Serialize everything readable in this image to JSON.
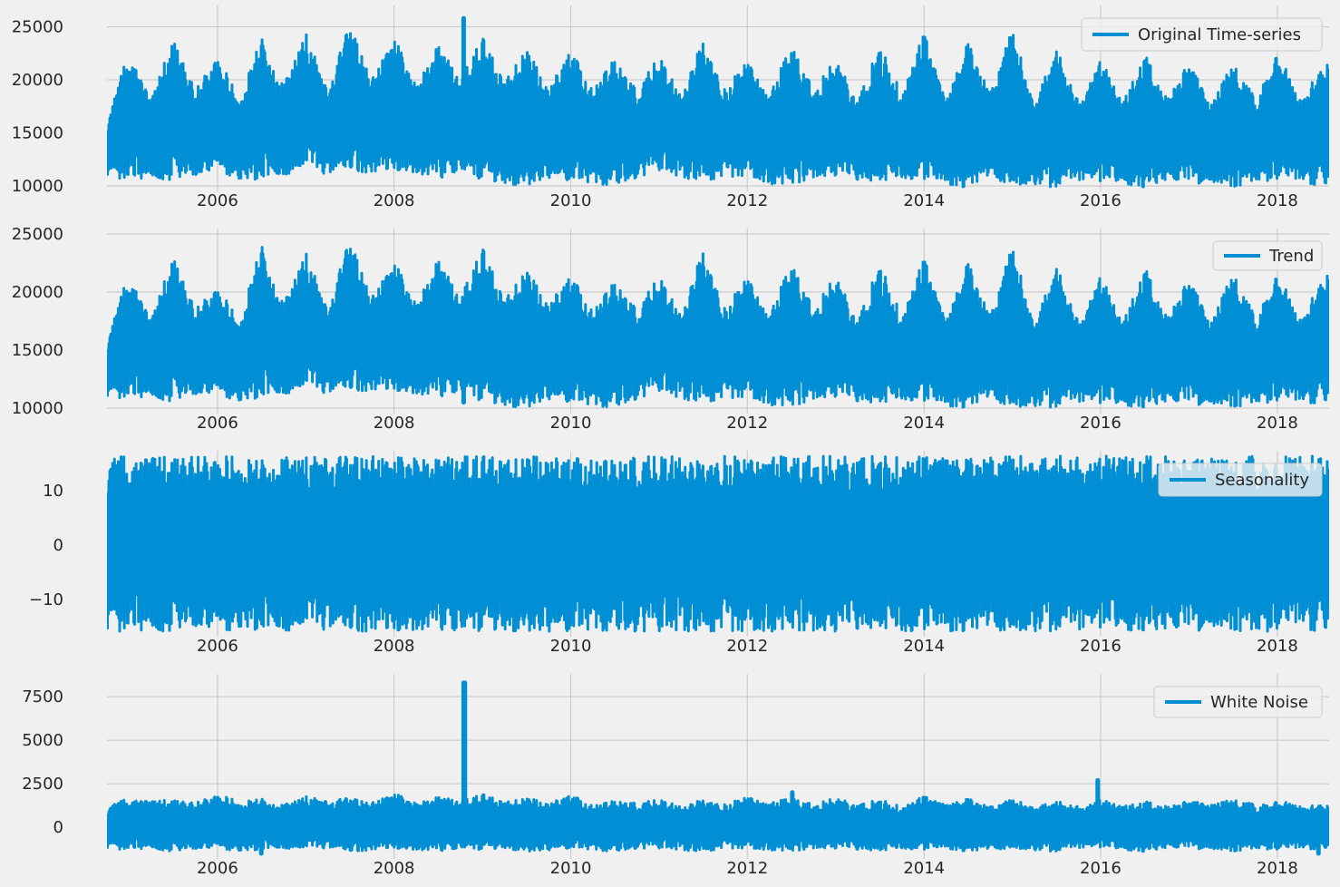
{
  "figure": {
    "background": "#f0f0f0"
  },
  "chart_data": [
    {
      "type": "line",
      "color": "#008fd5",
      "legend": {
        "label": "Original Time-series",
        "placement": "upper-right"
      },
      "grid": true,
      "xlim": [
        "2004-10-01",
        "2018-08-03"
      ],
      "ylim": [
        10000,
        26500
      ],
      "xticks": [
        "2006",
        "2008",
        "2010",
        "2012",
        "2014",
        "2016",
        "2018"
      ],
      "yticks": [
        10000,
        15000,
        20000,
        25000
      ],
      "ytick_labels": [
        "10000",
        "15000",
        "20000",
        "25000"
      ],
      "envelope": {
        "x": [
          "2004-10-01",
          "2005-01-01",
          "2005-04-01",
          "2005-07-01",
          "2005-10-01",
          "2006-01-01",
          "2006-04-01",
          "2006-07-01",
          "2006-10-01",
          "2007-01-01",
          "2007-04-01",
          "2007-07-01",
          "2007-10-01",
          "2008-01-01",
          "2008-04-01",
          "2008-07-01",
          "2008-10-01",
          "2009-01-01",
          "2009-04-01",
          "2009-07-01",
          "2009-10-01",
          "2010-01-01",
          "2010-04-01",
          "2010-07-01",
          "2010-10-01",
          "2011-01-01",
          "2011-04-01",
          "2011-07-01",
          "2011-10-01",
          "2012-01-01",
          "2012-04-01",
          "2012-07-01",
          "2012-10-01",
          "2013-01-01",
          "2013-04-01",
          "2013-07-01",
          "2013-10-01",
          "2014-01-01",
          "2014-04-01",
          "2014-07-01",
          "2014-10-01",
          "2015-01-01",
          "2015-04-01",
          "2015-07-01",
          "2015-10-01",
          "2016-01-01",
          "2016-04-01",
          "2016-07-01",
          "2016-10-01",
          "2017-01-01",
          "2017-04-01",
          "2017-07-01",
          "2017-10-01",
          "2018-01-01",
          "2018-04-01",
          "2018-08-03"
        ],
        "max": [
          16000,
          22900,
          18000,
          24000,
          19000,
          22300,
          18200,
          24300,
          19500,
          24500,
          19000,
          25300,
          20000,
          24200,
          19500,
          23500,
          20000,
          24000,
          20000,
          23000,
          19200,
          23000,
          19200,
          22300,
          19000,
          22300,
          18500,
          24200,
          19000,
          22000,
          18500,
          23400,
          19000,
          22000,
          18000,
          23300,
          18800,
          24500,
          18000,
          23800,
          18800,
          24800,
          17800,
          23000,
          18000,
          22000,
          17800,
          22500,
          18200,
          22000,
          17600,
          22000,
          18200,
          23000,
          18000,
          22000
        ],
        "min": [
          11000,
          10500,
          10800,
          10500,
          10800,
          11500,
          10500,
          10500,
          11000,
          11500,
          11000,
          11500,
          11200,
          11500,
          11200,
          10500,
          11500,
          10500,
          10200,
          10000,
          10800,
          10500,
          10200,
          10000,
          10800,
          11500,
          10800,
          10500,
          10800,
          11000,
          10200,
          10000,
          10800,
          11000,
          10500,
          10200,
          10800,
          10500,
          10200,
          9800,
          10800,
          10000,
          10200,
          9800,
          10500,
          10200,
          10200,
          9800,
          10500,
          10200,
          10200,
          9800,
          10500,
          10500,
          10200,
          10000
        ]
      },
      "spikes": [
        {
          "x": "2008-10-15",
          "y": 25800
        },
        {
          "x": "2008-12-15",
          "y": 11000
        }
      ]
    },
    {
      "type": "line",
      "color": "#008fd5",
      "legend": {
        "label": "Trend",
        "placement": "upper-right"
      },
      "grid": true,
      "xlim": [
        "2004-10-01",
        "2018-08-03"
      ],
      "ylim": [
        10000,
        25000
      ],
      "xticks": [
        "2006",
        "2008",
        "2010",
        "2012",
        "2014",
        "2016",
        "2018"
      ],
      "yticks": [
        10000,
        15000,
        20000,
        25000
      ],
      "ytick_labels": [
        "10000",
        "15000",
        "20000",
        "25000"
      ],
      "envelope": {
        "x": [
          "2004-10-01",
          "2005-01-01",
          "2005-04-01",
          "2005-07-01",
          "2005-10-01",
          "2006-01-01",
          "2006-04-01",
          "2006-07-01",
          "2006-10-01",
          "2007-01-01",
          "2007-04-01",
          "2007-07-01",
          "2007-10-01",
          "2008-01-01",
          "2008-04-01",
          "2008-07-01",
          "2008-10-01",
          "2009-01-01",
          "2009-04-01",
          "2009-07-01",
          "2009-10-01",
          "2010-01-01",
          "2010-04-01",
          "2010-07-01",
          "2010-10-01",
          "2011-01-01",
          "2011-04-01",
          "2011-07-01",
          "2011-10-01",
          "2012-01-01",
          "2012-04-01",
          "2012-07-01",
          "2012-10-01",
          "2013-01-01",
          "2013-04-01",
          "2013-07-01",
          "2013-10-01",
          "2014-01-01",
          "2014-04-01",
          "2014-07-01",
          "2014-10-01",
          "2015-01-01",
          "2015-04-01",
          "2015-07-01",
          "2015-10-01",
          "2016-01-01",
          "2016-04-01",
          "2016-07-01",
          "2016-10-01",
          "2017-01-01",
          "2017-04-01",
          "2017-07-01",
          "2017-10-01",
          "2018-01-01",
          "2018-04-01",
          "2018-08-03"
        ],
        "max": [
          15800,
          21800,
          17500,
          23200,
          18500,
          20500,
          17500,
          24400,
          19000,
          23500,
          18500,
          24600,
          19500,
          22800,
          19000,
          23000,
          19500,
          23800,
          19500,
          22000,
          19000,
          21600,
          18500,
          21200,
          18500,
          21400,
          18000,
          24100,
          18500,
          21500,
          18000,
          22600,
          18500,
          21500,
          17500,
          22500,
          18000,
          23000,
          17500,
          22800,
          18000,
          24000,
          17300,
          22300,
          17500,
          21500,
          17300,
          22200,
          17800,
          21500,
          17300,
          22100,
          17800,
          22000,
          17500,
          22000
        ],
        "min": [
          11000,
          10800,
          11000,
          10500,
          11000,
          11200,
          10500,
          10800,
          11200,
          11500,
          11200,
          11500,
          11500,
          11500,
          11200,
          10800,
          11500,
          10500,
          10200,
          10000,
          10800,
          10500,
          10200,
          10000,
          10800,
          11500,
          10800,
          10500,
          10800,
          11000,
          10300,
          10000,
          10800,
          11000,
          10500,
          10200,
          10800,
          10500,
          10200,
          10000,
          10800,
          10000,
          10200,
          10000,
          10500,
          10200,
          10200,
          10000,
          10500,
          10300,
          10200,
          10000,
          10500,
          10500,
          10300,
          10500
        ]
      },
      "spikes": [
        {
          "x": "2008-10-15",
          "y": 10500
        }
      ]
    },
    {
      "type": "line",
      "color": "#008fd5",
      "legend": {
        "label": "Seasonality",
        "placement": "upper-right"
      },
      "grid": true,
      "xlim": [
        "2004-10-01",
        "2018-08-03"
      ],
      "ylim": [
        -15.8,
        16.3
      ],
      "xticks": [
        "2006",
        "2008",
        "2010",
        "2012",
        "2014",
        "2016",
        "2018"
      ],
      "yticks": [
        -10,
        0,
        10
      ],
      "ytick_labels": [
        "−10",
        "0",
        "10"
      ],
      "envelope": {
        "x": [
          "2004-10-01",
          "2018-08-03"
        ],
        "max": [
          16.3,
          16.3
        ],
        "min": [
          -15.8,
          -15.8
        ]
      },
      "spikes": []
    },
    {
      "type": "line",
      "color": "#008fd5",
      "legend": {
        "label": "White Noise",
        "placement": "upper-right"
      },
      "grid": true,
      "xlim": [
        "2004-10-01",
        "2018-08-03"
      ],
      "ylim": [
        -1500,
        8500
      ],
      "xticks": [
        "2006",
        "2008",
        "2010",
        "2012",
        "2014",
        "2016",
        "2018"
      ],
      "yticks": [
        0,
        2500,
        5000,
        7500
      ],
      "ytick_labels": [
        "0",
        "2500",
        "5000",
        "7500"
      ],
      "envelope": {
        "x": [
          "2004-10-01",
          "2005-01-01",
          "2005-04-01",
          "2005-07-01",
          "2005-10-01",
          "2006-01-01",
          "2006-04-01",
          "2006-07-01",
          "2006-10-01",
          "2007-01-01",
          "2007-04-01",
          "2007-07-01",
          "2007-10-01",
          "2008-01-01",
          "2008-04-01",
          "2008-07-01",
          "2008-10-01",
          "2009-01-01",
          "2009-04-01",
          "2009-07-01",
          "2009-10-01",
          "2010-01-01",
          "2010-04-01",
          "2010-07-01",
          "2010-10-01",
          "2011-01-01",
          "2011-04-01",
          "2011-07-01",
          "2011-10-01",
          "2012-01-01",
          "2012-04-01",
          "2012-07-01",
          "2012-10-01",
          "2013-01-01",
          "2013-04-01",
          "2013-07-01",
          "2013-10-01",
          "2014-01-01",
          "2014-04-01",
          "2014-07-01",
          "2014-10-01",
          "2015-01-01",
          "2015-04-01",
          "2015-07-01",
          "2015-10-01",
          "2016-01-01",
          "2016-04-01",
          "2016-07-01",
          "2016-10-01",
          "2017-01-01",
          "2017-04-01",
          "2017-07-01",
          "2017-10-01",
          "2018-01-01",
          "2018-04-01",
          "2018-08-03"
        ],
        "max": [
          1200,
          1700,
          1500,
          1600,
          1400,
          1900,
          1500,
          1700,
          1300,
          1800,
          1500,
          1700,
          1400,
          2000,
          1400,
          1800,
          1500,
          1900,
          1500,
          1700,
          1400,
          1900,
          1300,
          1600,
          1400,
          1600,
          1200,
          1700,
          1300,
          1800,
          1400,
          1700,
          1300,
          1700,
          1300,
          1600,
          1200,
          1800,
          1300,
          1700,
          1200,
          1600,
          1200,
          1500,
          1200,
          1600,
          1200,
          1500,
          1200,
          1600,
          1300,
          1700,
          1300,
          1600,
          1200,
          1300
        ],
        "min": [
          -1200,
          -1300,
          -1200,
          -1400,
          -1300,
          -1200,
          -1400,
          -1300,
          -1200,
          -1300,
          -1200,
          -1400,
          -1300,
          -1200,
          -1300,
          -1400,
          -1200,
          -1300,
          -1200,
          -1400,
          -1300,
          -1200,
          -1300,
          -1400,
          -1200,
          -1200,
          -1300,
          -1400,
          -1200,
          -1200,
          -1300,
          -1400,
          -1200,
          -1200,
          -1300,
          -1400,
          -1200,
          -1300,
          -1200,
          -1400,
          -1300,
          -1200,
          -1300,
          -1400,
          -1200,
          -1200,
          -1300,
          -1400,
          -1200,
          -1200,
          -1300,
          -1400,
          -1200,
          -1300,
          -1300,
          -1200
        ]
      },
      "spikes": [
        {
          "x": "2008-10-15",
          "y": 8300
        },
        {
          "x": "2008-10-20",
          "y": 8300
        },
        {
          "x": "2015-12-20",
          "y": 2700
        },
        {
          "x": "2012-07-05",
          "y": 2000
        },
        {
          "x": "2006-07-01",
          "y": -1500
        },
        {
          "x": "2018-06-20",
          "y": -1500
        }
      ]
    }
  ]
}
